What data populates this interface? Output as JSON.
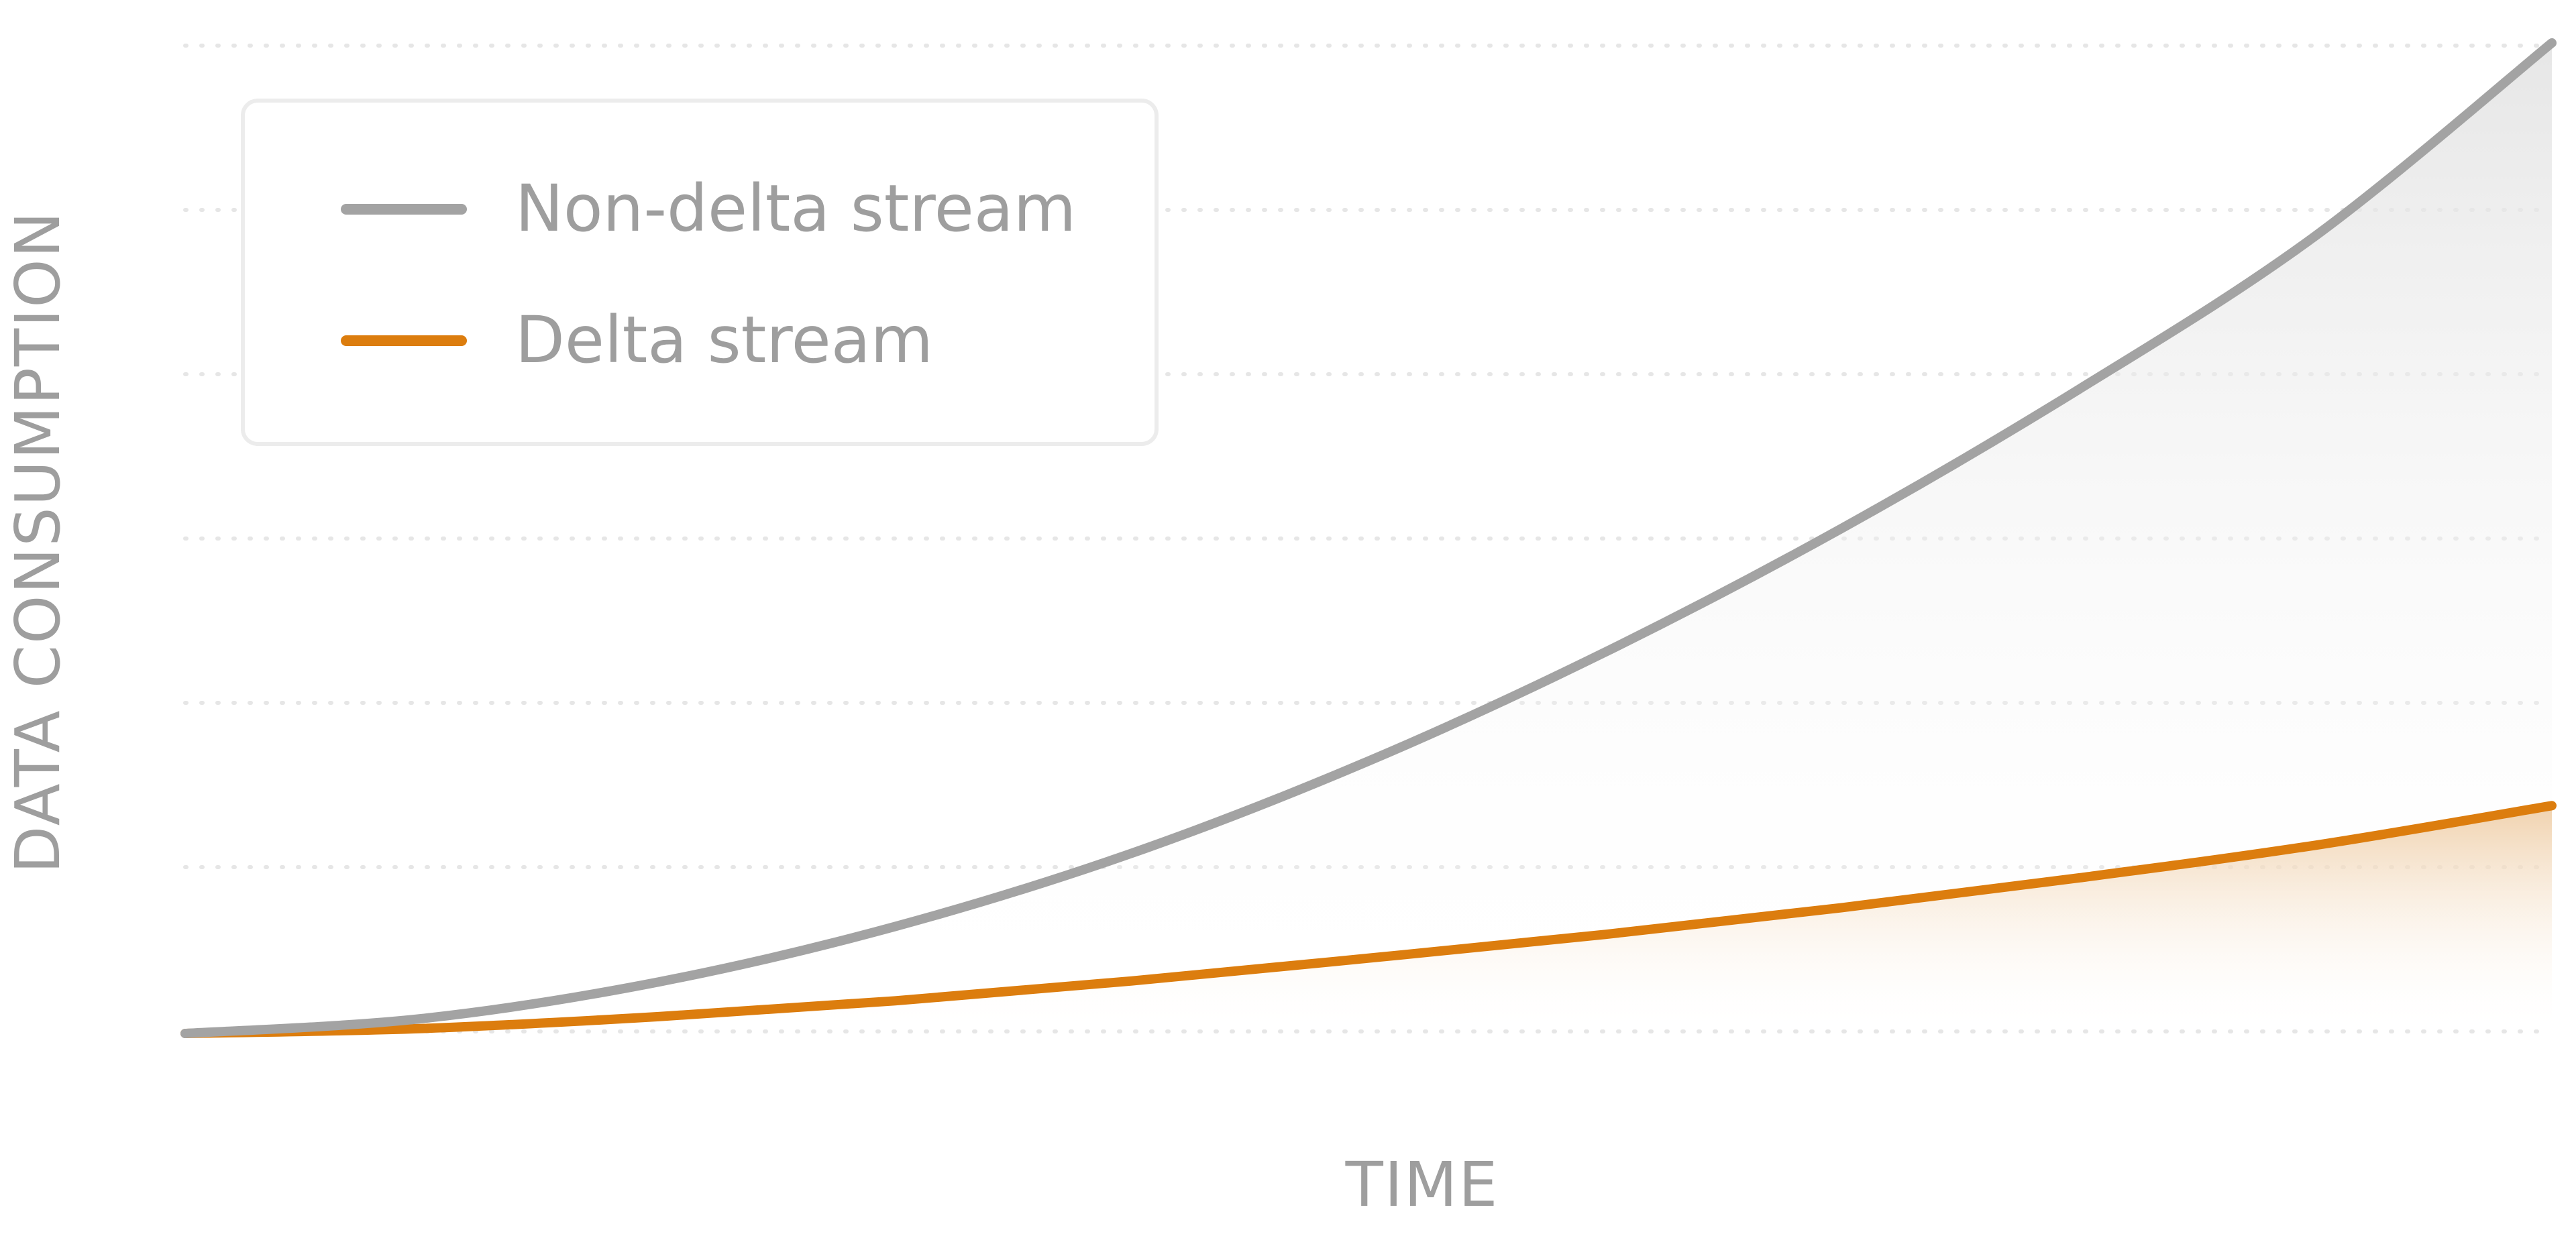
{
  "chart_data": {
    "type": "area",
    "title": "",
    "xlabel": "TIME",
    "ylabel": "DATA CONSUMPTION",
    "grid": "horizontal-dotted",
    "legend_position": "top-left",
    "xlim": [
      0,
      1
    ],
    "ylim": [
      0,
      1
    ],
    "x": [
      0,
      0.1,
      0.2,
      0.3,
      0.4,
      0.5,
      0.6,
      0.7,
      0.8,
      0.9,
      1.0
    ],
    "series": [
      {
        "name": "Non-delta stream",
        "color": "#a3a3a3",
        "fill": "#e8e8e8",
        "values": [
          0,
          0.015,
          0.052,
          0.108,
          0.182,
          0.275,
          0.385,
          0.51,
          0.65,
          0.805,
          1.0
        ]
      },
      {
        "name": "Delta stream",
        "color": "#dc7d0e",
        "fill": "#f1d2ad",
        "values": [
          0,
          0.005,
          0.017,
          0.033,
          0.053,
          0.076,
          0.1,
          0.127,
          0.157,
          0.19,
          0.23
        ]
      }
    ]
  }
}
